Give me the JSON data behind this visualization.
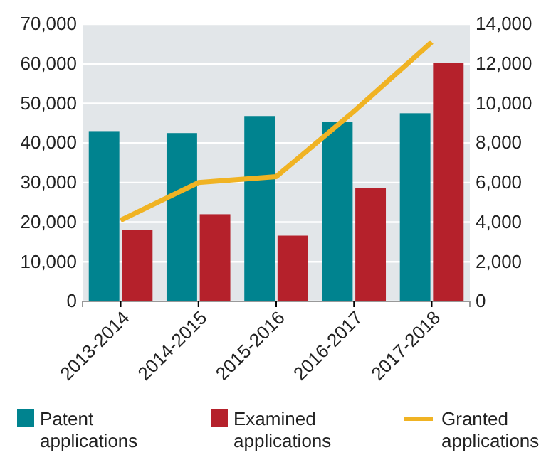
{
  "chart_data": {
    "type": "bar",
    "categories": [
      "2013-2014",
      "2014-2015",
      "2015-2016",
      "2016-2017",
      "2017-2018"
    ],
    "series": [
      {
        "name": "Patent applications",
        "color": "#00838f",
        "values": [
          43000,
          42500,
          46800,
          45300,
          47500
        ]
      },
      {
        "name": "Examined applications",
        "color": "#b5212b",
        "values": [
          18000,
          22000,
          16600,
          28700,
          60300
        ]
      },
      {
        "name": "Granted applications",
        "type": "line",
        "axis": "y2",
        "color": "#f0b323",
        "values": [
          4100,
          6000,
          6300,
          9600,
          13100
        ]
      }
    ],
    "ylim": [
      0,
      70000
    ],
    "yticks": [
      0,
      {
        "value": 10000,
        "label": "10,000"
      },
      {
        "value": 20000,
        "label": "20,000"
      },
      {
        "value": 30000,
        "label": "30,000"
      },
      {
        "value": 40000,
        "label": "40,000"
      },
      {
        "value": 50000,
        "label": "50,000"
      },
      {
        "value": 60000,
        "label": "60,000"
      },
      {
        "value": 70000,
        "label": "70,000"
      }
    ],
    "y2lim": [
      0,
      14000
    ],
    "y2ticks": [
      0,
      {
        "value": 2000,
        "label": "2,000"
      },
      {
        "value": 4000,
        "label": "4,000"
      },
      {
        "value": 6000,
        "label": "6,000"
      },
      {
        "value": 8000,
        "label": "8,000"
      },
      {
        "value": 10000,
        "label": "10,000"
      },
      {
        "value": 12000,
        "label": "12,000"
      },
      {
        "value": 14000,
        "label": "14,000"
      }
    ],
    "grid": "y",
    "legend": "bottom",
    "marker": "none"
  }
}
